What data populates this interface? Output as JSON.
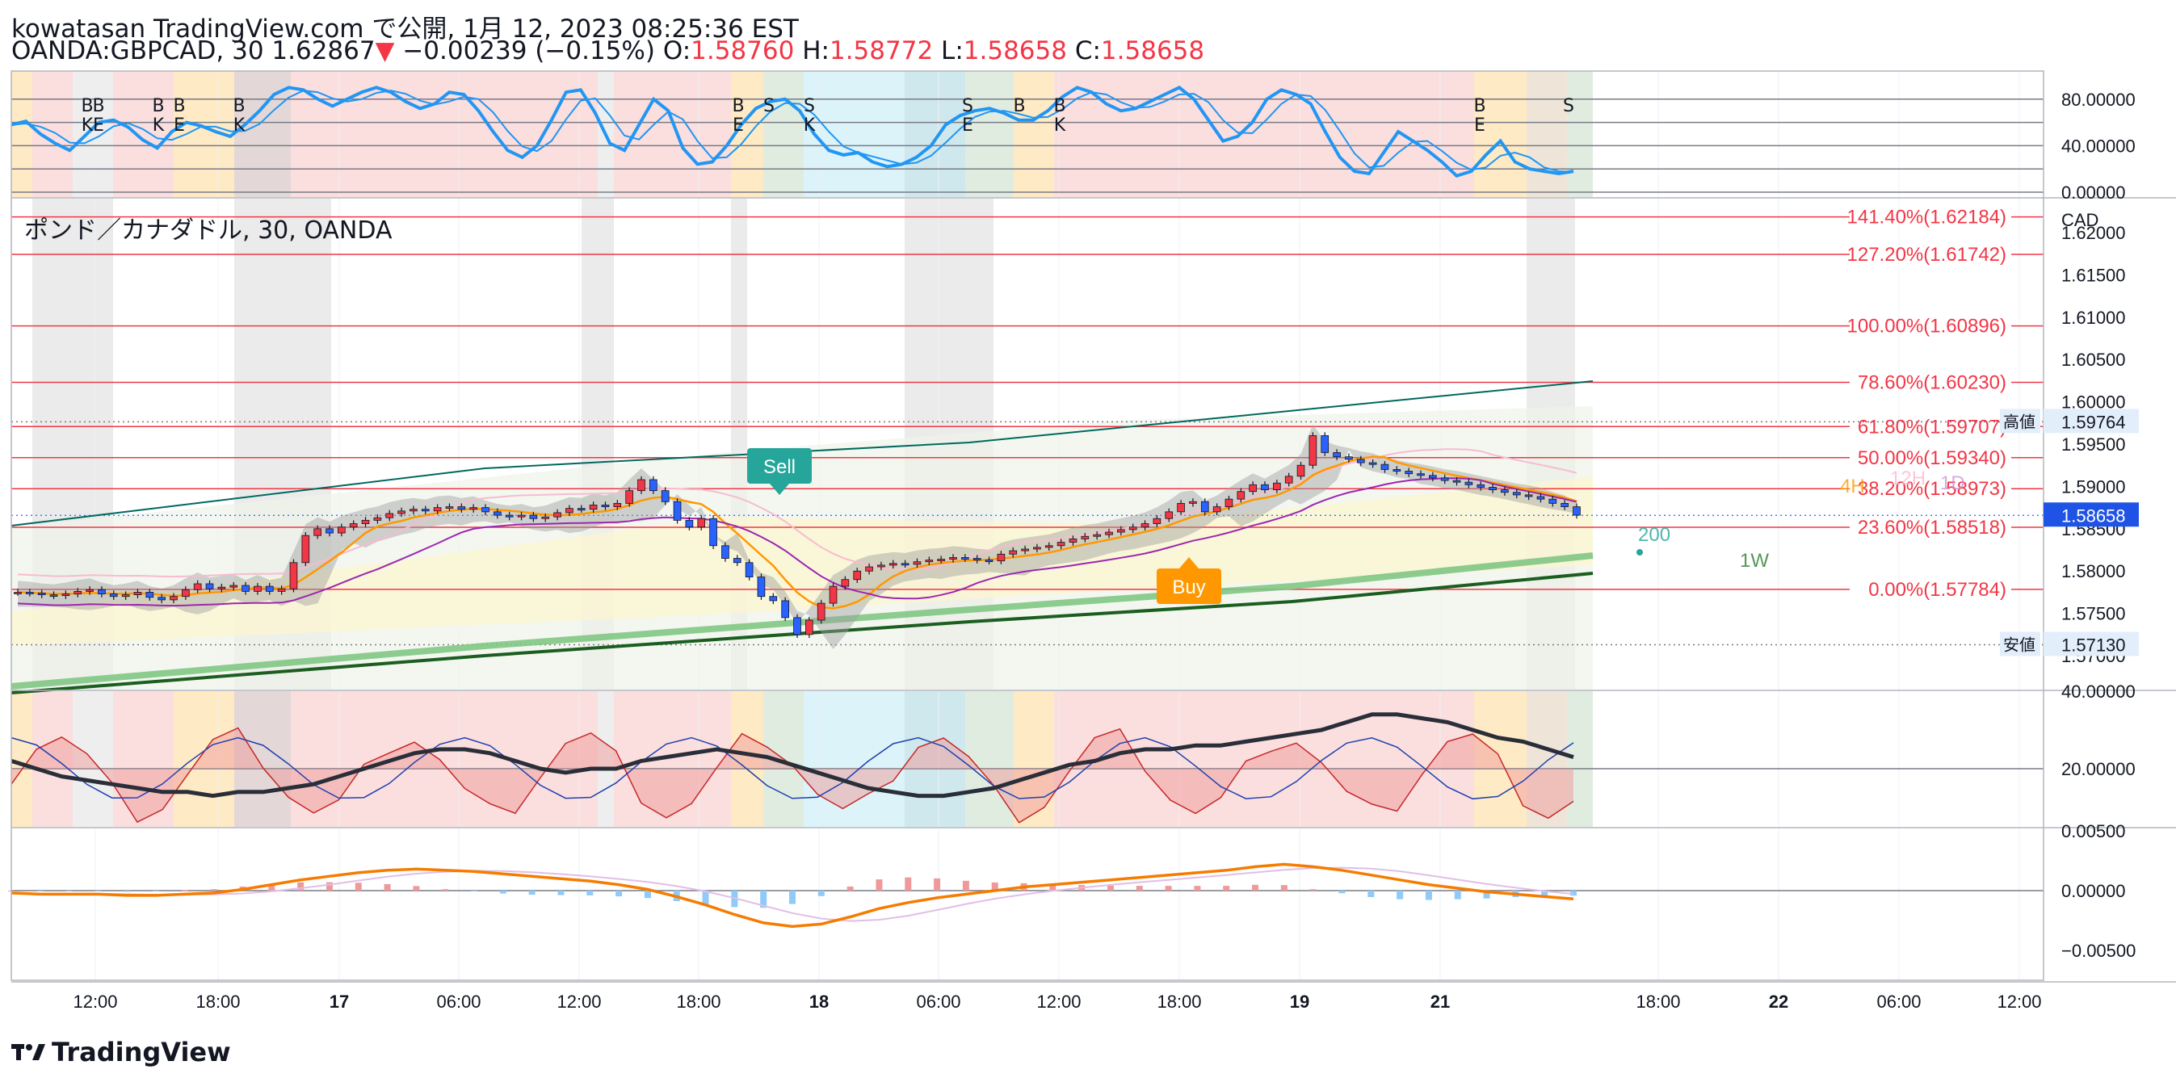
{
  "header": {
    "line1": "kowatasan TradingView.com で公開, 1月 12, 2023 08:25:36 EST",
    "symbol": "OANDA:GBPCAD, 30",
    "price": "1.62867",
    "change": "−0.00239 (−0.15%)",
    "o_label": "O:",
    "o": "1.58760",
    "h_label": "H:",
    "h": "1.58772",
    "l_label": "L:",
    "l": "1.58658",
    "c_label": "C:",
    "c": "1.58658"
  },
  "footer": {
    "logo": "TradingView"
  },
  "colors": {
    "up": "#f23645",
    "down": "#2962ff",
    "fib": "#f23645",
    "blue": "#2196f3",
    "green": "#2e7d32"
  },
  "chart_data": [
    {
      "type": "line",
      "panel": "stochastic",
      "y_ticks": [
        "80.00000",
        "40.00000",
        "0.00000"
      ],
      "ylim": [
        0,
        100
      ],
      "k_line": [
        58,
        61,
        50,
        42,
        36,
        48,
        60,
        62,
        56,
        45,
        38,
        52,
        60,
        57,
        52,
        48,
        58,
        70,
        84,
        90,
        88,
        80,
        74,
        80,
        86,
        90,
        86,
        78,
        72,
        76,
        86,
        84,
        70,
        52,
        36,
        30,
        40,
        62,
        86,
        88,
        68,
        42,
        36,
        58,
        80,
        70,
        38,
        24,
        26,
        40,
        58,
        72,
        78,
        80,
        70,
        50,
        36,
        32,
        34,
        26,
        22,
        24,
        30,
        40,
        58,
        66,
        70,
        72,
        68,
        62,
        62,
        70,
        82,
        90,
        86,
        76,
        70,
        72,
        78,
        84,
        90,
        80,
        62,
        44,
        48,
        60,
        80,
        88,
        84,
        76,
        52,
        30,
        18,
        16,
        34,
        52,
        44,
        36,
        26,
        14,
        18,
        32,
        44,
        26,
        20,
        18,
        16,
        18
      ],
      "labels": [
        "B",
        "K",
        "E",
        "B",
        "K",
        "B",
        "K",
        "E",
        "B",
        "K",
        "B",
        "E",
        "S",
        "S",
        "K",
        "S",
        "E",
        "B",
        "B",
        "K",
        "B",
        "E",
        "S"
      ]
    },
    {
      "type": "line",
      "panel": "price",
      "title": "ポンド／カナダドル, 30, OANDA",
      "currency": "CAD",
      "y_ticks": [
        "1.62000",
        "1.61500",
        "1.61000",
        "1.60500",
        "1.60000",
        "1.59500",
        "1.59000",
        "1.58500",
        "1.58000",
        "1.57500",
        "1.57000"
      ],
      "ylim": [
        1.566,
        1.624
      ],
      "fib_levels": [
        {
          "label": "141.40%(1.62184)",
          "value": 1.62184
        },
        {
          "label": "127.20%(1.61742)",
          "value": 1.61742
        },
        {
          "label": "100.00%(1.60896)",
          "value": 1.60896
        },
        {
          "label": "78.60%(1.60230)",
          "value": 1.6023
        },
        {
          "label": "61.80%(1.59707)",
          "value": 1.59707
        },
        {
          "label": "50.00%(1.59340)",
          "value": 1.5934
        },
        {
          "label": "38.20%(1.58973)",
          "value": 1.58973
        },
        {
          "label": "23.60%(1.58518)",
          "value": 1.58518
        },
        {
          "label": "0.00%(1.57784)",
          "value": 1.57784
        }
      ],
      "high_label": "高値",
      "high": "1.59764",
      "low_label": "安値",
      "low": "1.57130",
      "last_price": "1.58658",
      "signals": [
        {
          "label": "Sell"
        },
        {
          "label": "Buy"
        }
      ],
      "tf_labels": [
        "4H",
        "12H",
        "1D",
        "200",
        "1W"
      ],
      "close": [
        1.5775,
        1.5774,
        1.5772,
        1.5771,
        1.5773,
        1.5776,
        1.5778,
        1.5773,
        1.577,
        1.5772,
        1.5775,
        1.5769,
        1.5766,
        1.577,
        1.5778,
        1.5785,
        1.5779,
        1.5781,
        1.5783,
        1.5776,
        1.5782,
        1.5776,
        1.5779,
        1.581,
        1.5842,
        1.585,
        1.5845,
        1.5852,
        1.5856,
        1.586,
        1.5863,
        1.5868,
        1.5871,
        1.5873,
        1.5871,
        1.5875,
        1.5876,
        1.5873,
        1.5875,
        1.587,
        1.5866,
        1.5864,
        1.5866,
        1.5862,
        1.5864,
        1.5869,
        1.5874,
        1.5873,
        1.5878,
        1.5876,
        1.588,
        1.5895,
        1.5908,
        1.5895,
        1.5882,
        1.586,
        1.5852,
        1.5862,
        1.583,
        1.5815,
        1.581,
        1.5793,
        1.577,
        1.5765,
        1.5745,
        1.5725,
        1.5742,
        1.5762,
        1.5782,
        1.579,
        1.58,
        1.5805,
        1.5807,
        1.5809,
        1.5808,
        1.5811,
        1.5813,
        1.5814,
        1.5816,
        1.5815,
        1.5813,
        1.5812,
        1.582,
        1.5824,
        1.5826,
        1.5828,
        1.583,
        1.5834,
        1.5838,
        1.5841,
        1.5843,
        1.5846,
        1.5849,
        1.5852,
        1.5856,
        1.5862,
        1.587,
        1.588,
        1.5882,
        1.587,
        1.5876,
        1.5885,
        1.5894,
        1.5902,
        1.5896,
        1.5904,
        1.5912,
        1.5925,
        1.596,
        1.594,
        1.5935,
        1.5932,
        1.5928,
        1.5926,
        1.592,
        1.5918,
        1.5915,
        1.5913,
        1.591,
        1.5907,
        1.5905,
        1.5902,
        1.5899,
        1.5896,
        1.5893,
        1.589,
        1.5888,
        1.5885,
        1.588,
        1.5876,
        1.5866
      ]
    },
    {
      "type": "line",
      "panel": "dmi",
      "y_ticks": [
        "40.00000",
        "20.00000"
      ],
      "ylim": [
        5,
        40
      ],
      "adx": [
        22,
        20,
        18,
        17,
        16,
        15,
        14,
        14,
        13,
        14,
        14,
        15,
        16,
        18,
        20,
        22,
        24,
        25,
        25,
        24,
        22,
        20,
        19,
        20,
        20,
        22,
        23,
        24,
        25,
        24,
        23,
        21,
        19,
        17,
        15,
        14,
        13,
        13,
        14,
        15,
        17,
        19,
        21,
        22,
        24,
        25,
        25,
        26,
        26,
        27,
        28,
        29,
        30,
        32,
        34,
        34,
        33,
        32,
        30,
        28,
        27,
        25,
        23
      ]
    },
    {
      "type": "bar",
      "panel": "macd",
      "y_ticks": [
        "0.00500",
        "0.00000",
        "−0.00500"
      ],
      "ylim": [
        -0.0075,
        0.0052
      ],
      "macd": [
        -0.0002,
        -0.0003,
        -0.0003,
        -0.0003,
        -0.0004,
        -0.0004,
        -0.0003,
        -0.0002,
        0.0001,
        0.0005,
        0.0009,
        0.0012,
        0.0015,
        0.0017,
        0.0018,
        0.0017,
        0.0016,
        0.0014,
        0.0012,
        0.001,
        0.0008,
        0.0005,
        0.0001,
        -0.0005,
        -0.0012,
        -0.002,
        -0.0027,
        -0.003,
        -0.0028,
        -0.0022,
        -0.0015,
        -0.001,
        -0.0006,
        -0.0003,
        0.0,
        0.0003,
        0.0005,
        0.0007,
        0.0009,
        0.0011,
        0.0013,
        0.0015,
        0.0017,
        0.002,
        0.0022,
        0.002,
        0.0017,
        0.0013,
        0.0009,
        0.0005,
        0.0002,
        -0.0001,
        -0.0003,
        -0.0005,
        -0.0007
      ]
    }
  ],
  "x_axis": {
    "ticks": [
      "12:00",
      "18:00",
      "17",
      "06:00",
      "12:00",
      "18:00",
      "18",
      "06:00",
      "12:00",
      "18:00",
      "19",
      "21",
      "18:00",
      "22",
      "06:00",
      "12:00"
    ],
    "bold": [
      false,
      false,
      true,
      false,
      false,
      false,
      true,
      false,
      false,
      false,
      true,
      true,
      false,
      true,
      false,
      false
    ]
  }
}
